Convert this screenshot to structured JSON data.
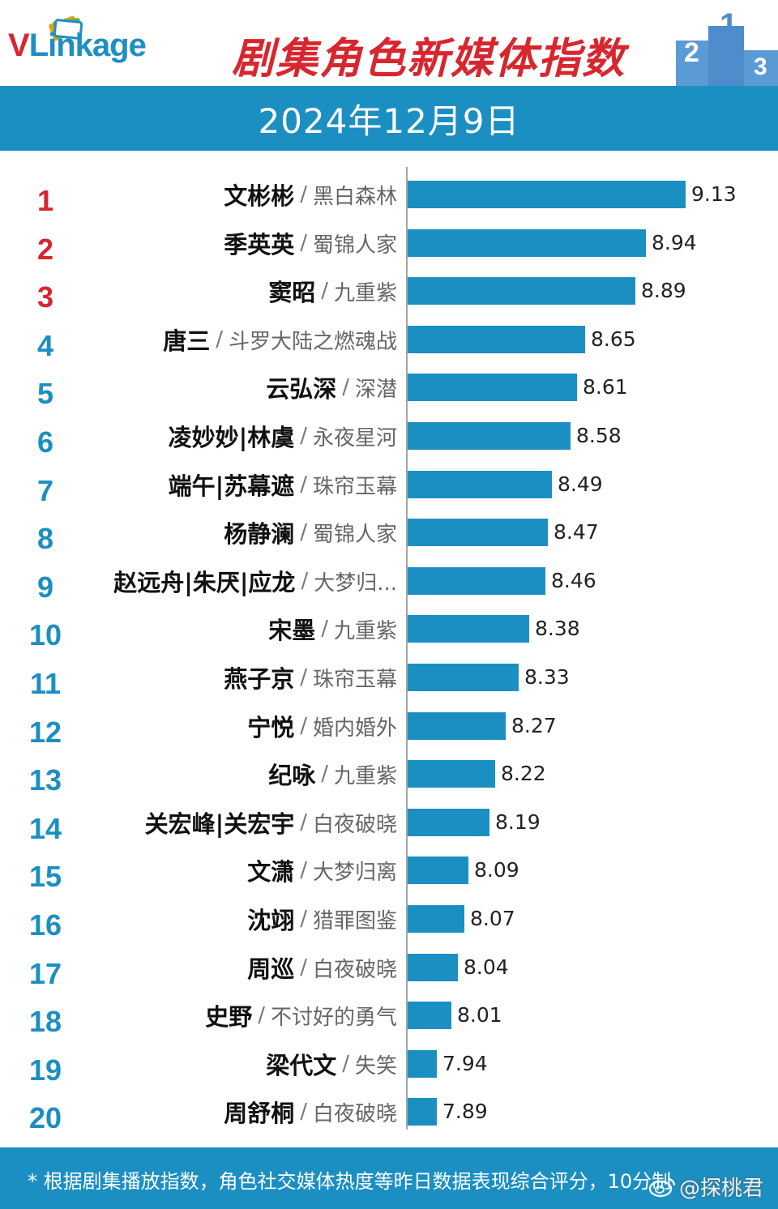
{
  "header": {
    "logo_v": "V",
    "logo_rest": "Linkage",
    "title": "剧集角色新媒体指数",
    "date": "2024年12月9日"
  },
  "colors": {
    "accent": "#1c8fc2",
    "title_red": "#d8262f",
    "rank_red": "#d8262f",
    "rank_blue": "#1c8fc2"
  },
  "chart_data": {
    "type": "bar",
    "orientation": "horizontal",
    "title": "剧集角色新媒体指数",
    "subtitle": "2024年12月9日",
    "categories": [
      "文彬彬 / 黑白森林",
      "季英英 / 蜀锦人家",
      "窦昭 / 九重紫",
      "唐三 / 斗罗大陆之燃魂战",
      "云弘深 / 深潜",
      "凌妙妙|林虞 / 永夜星河",
      "端午|苏幕遮 / 珠帘玉幕",
      "杨静澜 / 蜀锦人家",
      "赵远舟|朱厌|应龙 / 大梦归...",
      "宋墨 / 九重紫",
      "燕子京 / 珠帘玉幕",
      "宁悦 / 婚内婚外",
      "纪咏 / 九重紫",
      "关宏峰|关宏宇 / 白夜破晓",
      "文潇 / 大梦归离",
      "沈翊 / 猎罪图鉴",
      "周巡 / 白夜破晓",
      "史野 / 不讨好的勇气",
      "梁代文 / 失笑",
      "周舒桐 / 白夜破晓"
    ],
    "rows": [
      {
        "rank": "1",
        "character": "文彬彬",
        "drama": "黑白森林",
        "value": 9.13
      },
      {
        "rank": "2",
        "character": "季英英",
        "drama": "蜀锦人家",
        "value": 8.94
      },
      {
        "rank": "3",
        "character": "窦昭",
        "drama": "九重紫",
        "value": 8.89
      },
      {
        "rank": "4",
        "character": "唐三",
        "drama": "斗罗大陆之燃魂战",
        "value": 8.65
      },
      {
        "rank": "5",
        "character": "云弘深",
        "drama": "深潜",
        "value": 8.61
      },
      {
        "rank": "6",
        "character": "凌妙妙|林虞",
        "drama": "永夜星河",
        "value": 8.58
      },
      {
        "rank": "7",
        "character": "端午|苏幕遮",
        "drama": "珠帘玉幕",
        "value": 8.49
      },
      {
        "rank": "8",
        "character": "杨静澜",
        "drama": "蜀锦人家",
        "value": 8.47
      },
      {
        "rank": "9",
        "character": "赵远舟|朱厌|应龙",
        "drama": "大梦归...",
        "value": 8.46
      },
      {
        "rank": "10",
        "character": "宋墨",
        "drama": "九重紫",
        "value": 8.38
      },
      {
        "rank": "11",
        "character": "燕子京",
        "drama": "珠帘玉幕",
        "value": 8.33
      },
      {
        "rank": "12",
        "character": "宁悦",
        "drama": "婚内婚外",
        "value": 8.27
      },
      {
        "rank": "13",
        "character": "纪咏",
        "drama": "九重紫",
        "value": 8.22
      },
      {
        "rank": "14",
        "character": "关宏峰|关宏宇",
        "drama": "白夜破晓",
        "value": 8.19
      },
      {
        "rank": "15",
        "character": "文潇",
        "drama": "大梦归离",
        "value": 8.09
      },
      {
        "rank": "16",
        "character": "沈翊",
        "drama": "猎罪图鉴",
        "value": 8.07
      },
      {
        "rank": "17",
        "character": "周巡",
        "drama": "白夜破晓",
        "value": 8.04
      },
      {
        "rank": "18",
        "character": "史野",
        "drama": "不讨好的勇气",
        "value": 8.01
      },
      {
        "rank": "19",
        "character": "梁代文",
        "drama": "失笑",
        "value": 7.94
      },
      {
        "rank": "20",
        "character": "周舒桐",
        "drama": "白夜破晓",
        "value": 7.89
      }
    ],
    "xlim": [
      7.8,
      9.15
    ],
    "grid": false,
    "separator": "/"
  },
  "footer": {
    "note": "* 根据剧集播放指数，角色社交媒体热度等昨日数据表现综合评分，10分制",
    "watermark": "@探桃君"
  }
}
